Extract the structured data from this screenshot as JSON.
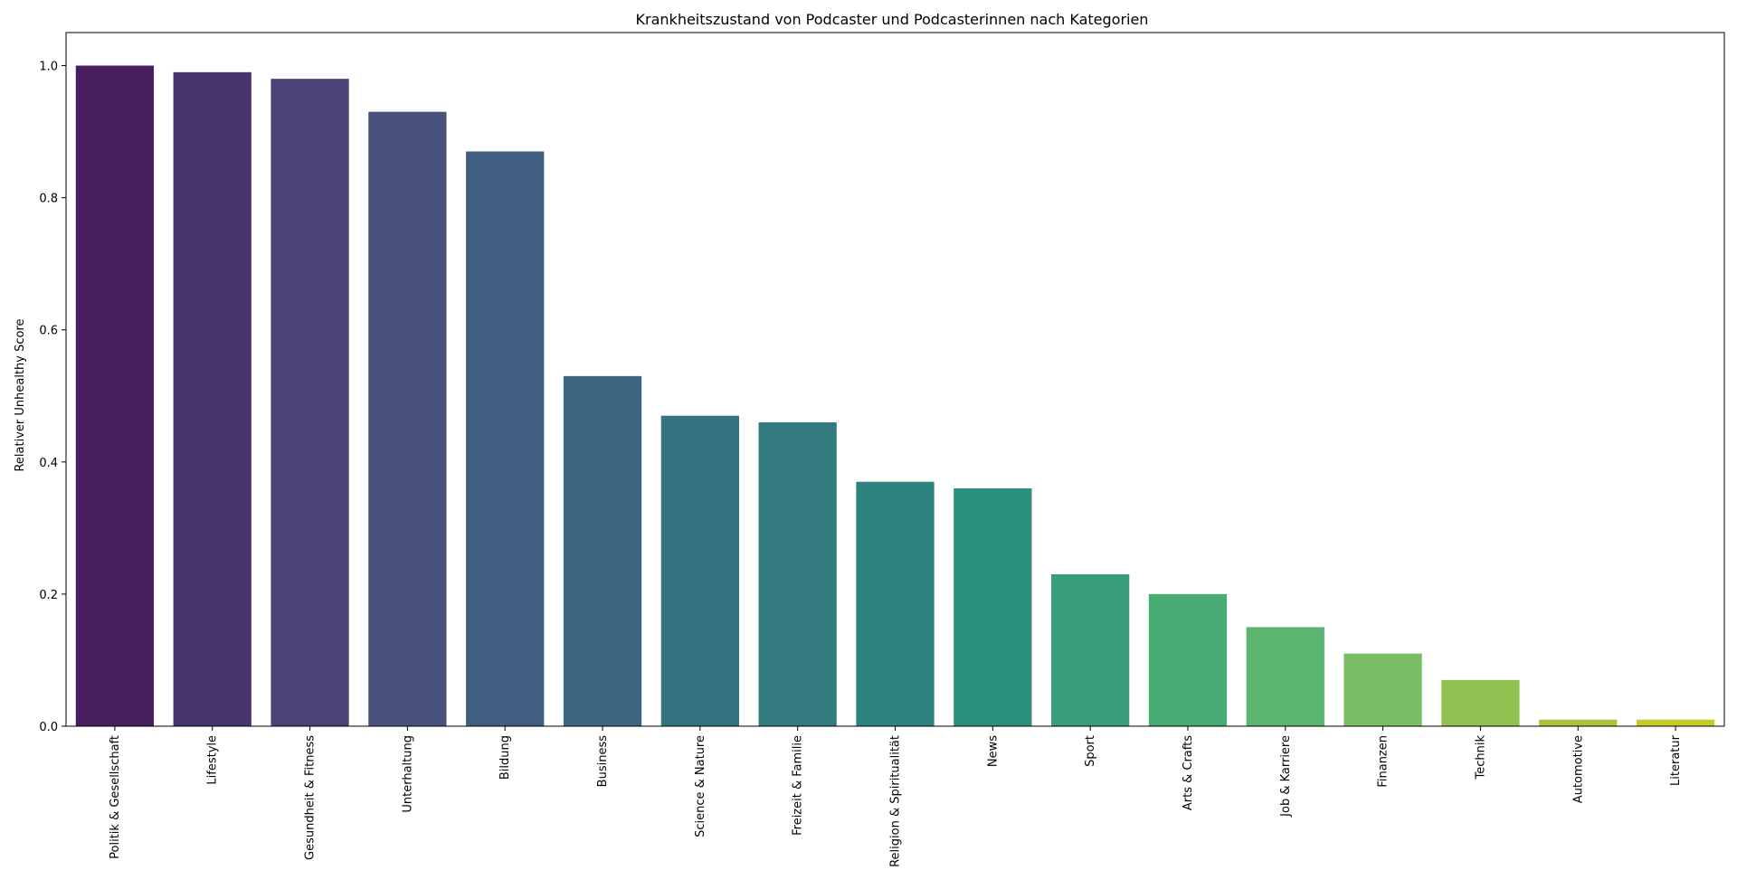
{
  "chart_data": {
    "type": "bar",
    "title": "Krankheitszustand von Podcaster und Podcasterinnen nach Kategorien",
    "xlabel": "",
    "ylabel": "Relativer Unhealthy Score",
    "ylim": [
      0,
      1.05
    ],
    "yticks": [
      "0.0",
      "0.2",
      "0.4",
      "0.6",
      "0.8",
      "1.0"
    ],
    "grid": false,
    "categories": [
      "Politik & Gesellschaft",
      "Lifestyle",
      "Gesundheit & Fitness",
      "Unterhaltung",
      "Bildung",
      "Business",
      "Science & Nature",
      "Freizeit & Familie",
      "Religion & Spiritualität",
      "News",
      "Sport",
      "Arts & Crafts",
      "Job & Karriere",
      "Finanzen",
      "Technik",
      "Automotive",
      "Literatur"
    ],
    "values": [
      1.0,
      0.99,
      0.98,
      0.93,
      0.87,
      0.53,
      0.47,
      0.46,
      0.37,
      0.36,
      0.23,
      0.2,
      0.15,
      0.11,
      0.07,
      0.01,
      0.01
    ],
    "colors": [
      "#471e5e",
      "#4a3470",
      "#4b4378",
      "#48527d",
      "#405e7f",
      "#3d6680",
      "#367380",
      "#327a7e",
      "#2d837d",
      "#2b8f7d",
      "#389d7c",
      "#47ab74",
      "#5bb46f",
      "#79be66",
      "#91c151",
      "#a9c43c",
      "#c3cb2b"
    ]
  }
}
